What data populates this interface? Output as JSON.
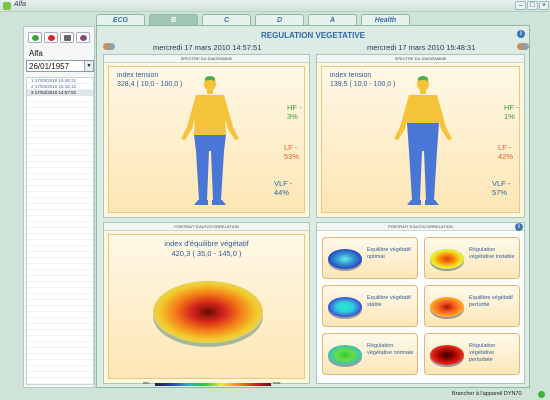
{
  "window": {
    "title": "Alfa"
  },
  "tabs": [
    {
      "label": "ECG"
    },
    {
      "label": "B"
    },
    {
      "label": "C"
    },
    {
      "label": "D"
    },
    {
      "label": "A"
    },
    {
      "label": "Health"
    }
  ],
  "sidebar": {
    "user_name": "Alfa",
    "birth_date": "26/01/1957",
    "sessions": [
      {
        "index": "1",
        "datetime": "17/03/2010 15:48:31"
      },
      {
        "index": "2",
        "datetime": "17/03/2010 15:16:12"
      },
      {
        "index": "3",
        "datetime": "17/03/2010 14:57:51"
      }
    ]
  },
  "main": {
    "title": "REGULATION VEGETATIVE",
    "left_timestamp": "mercredi 17 mars 2010 14:57:51",
    "right_timestamp": "mercredi 17 mars 2010 15:48:31",
    "spectrum_header": "SPECTRE DU DIAGRAMME",
    "portrait_header": "PORTRAIT D'AUTOCORRELATION",
    "left_spectrum": {
      "index_label": "index tension",
      "index_value": "328,4 ( 10,0 - 100,0 )",
      "hf": "HF - 3%",
      "lf": "LF - 53%",
      "vlf": "VLF - 44%"
    },
    "right_spectrum": {
      "index_label": "index tension",
      "index_value": "139,5 ( 10,0 - 100,0 )",
      "hf": "HF - 1%",
      "lf": "LF - 42%",
      "vlf": "VLF - 57%"
    },
    "equilibrium": {
      "label": "index d'équilibre végétatif",
      "value": "420,3 ( 35,0 - 145,0 )",
      "scale_min": "min",
      "scale_max": "max"
    },
    "legend": [
      {
        "label": "Equilibre végétatif optimal"
      },
      {
        "label": "Régulation végétative instable"
      },
      {
        "label": "Equilibre végétatif stable"
      },
      {
        "label": "Equilibre végétatif perturbé"
      },
      {
        "label": "Régulation végétative normale"
      },
      {
        "label": "Régulation végétative perturbée"
      }
    ]
  },
  "status": {
    "text": "Brancher à l'appareil DYN70"
  },
  "colors": {
    "accent": "#2e6aa8",
    "panel": "#fff7dc",
    "body_upper": "#f5c33a",
    "body_lower": "#4a76d6",
    "hf": "#3a9a3a",
    "lf": "#e0632a",
    "vlf": "#2e6aa8"
  }
}
